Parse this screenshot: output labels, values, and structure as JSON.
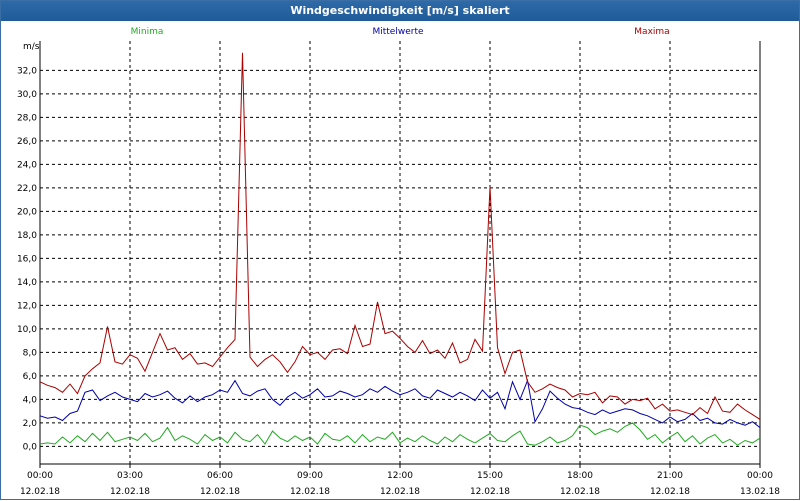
{
  "window": {
    "title": "Windgeschwindigkeit [m/s] skaliert"
  },
  "chart_data": {
    "type": "line",
    "title": "Windgeschwindigkeit [m/s] skaliert",
    "ylabel": "m/s",
    "ylim": [
      -1.5,
      34.5
    ],
    "yticks": [
      0,
      2,
      4,
      6,
      8,
      10,
      12,
      14,
      16,
      18,
      20,
      22,
      24,
      26,
      28,
      30,
      32
    ],
    "ytick_labels": [
      "0,0",
      "2,0",
      "4,0",
      "6,0",
      "8,0",
      "10,0",
      "12,0",
      "14,0",
      "16,0",
      "18,0",
      "20,0",
      "22,0",
      "24,0",
      "26,0",
      "28,0",
      "30,0",
      "32,0"
    ],
    "xlim_hours": [
      0,
      24
    ],
    "xticks": [
      {
        "time": "00:00",
        "date": "12.02.18"
      },
      {
        "time": "03:00",
        "date": "12.02.18"
      },
      {
        "time": "06:00",
        "date": "12.02.18"
      },
      {
        "time": "09:00",
        "date": "12.02.18"
      },
      {
        "time": "12:00",
        "date": "12.02.18"
      },
      {
        "time": "15:00",
        "date": "12.02.18"
      },
      {
        "time": "18:00",
        "date": "12.02.18"
      },
      {
        "time": "21:00",
        "date": "12.02.18"
      },
      {
        "time": "00:00",
        "date": "13.02.18"
      }
    ],
    "grid": true,
    "legend_position": "top",
    "x_hours": [
      0,
      0.25,
      0.5,
      0.75,
      1,
      1.25,
      1.5,
      1.75,
      2,
      2.25,
      2.5,
      2.75,
      3,
      3.25,
      3.5,
      3.75,
      4,
      4.25,
      4.5,
      4.75,
      5,
      5.25,
      5.5,
      5.75,
      6,
      6.25,
      6.5,
      6.75,
      7,
      7.25,
      7.5,
      7.75,
      8,
      8.25,
      8.5,
      8.75,
      9,
      9.25,
      9.5,
      9.75,
      10,
      10.25,
      10.5,
      10.75,
      11,
      11.25,
      11.5,
      11.75,
      12,
      12.25,
      12.5,
      12.75,
      13,
      13.25,
      13.5,
      13.75,
      14,
      14.25,
      14.5,
      14.75,
      15,
      15.25,
      15.5,
      15.75,
      16,
      16.25,
      16.5,
      16.75,
      17,
      17.25,
      17.5,
      17.75,
      18,
      18.25,
      18.5,
      18.75,
      19,
      19.25,
      19.5,
      19.75,
      20,
      20.25,
      20.5,
      20.75,
      21,
      21.25,
      21.5,
      21.75,
      22,
      22.25,
      22.5,
      22.75,
      23,
      23.25,
      23.5,
      23.75,
      24
    ],
    "series": [
      {
        "name": "Minima",
        "color": "#22aa22",
        "values": [
          0.2,
          0.3,
          0.2,
          0.8,
          0.3,
          0.9,
          0.4,
          1.1,
          0.5,
          1.2,
          0.4,
          0.6,
          0.8,
          0.5,
          1.1,
          0.4,
          0.7,
          1.6,
          0.5,
          0.9,
          0.6,
          0.2,
          1.0,
          0.5,
          0.8,
          0.3,
          1.2,
          0.6,
          0.4,
          1.0,
          0.2,
          1.3,
          0.7,
          0.4,
          0.9,
          0.5,
          0.8,
          0.2,
          1.1,
          0.6,
          0.5,
          0.9,
          0.3,
          1.0,
          0.4,
          0.8,
          0.6,
          1.2,
          0.3,
          0.7,
          0.4,
          0.9,
          0.5,
          0.2,
          0.8,
          0.4,
          1.0,
          0.6,
          0.3,
          0.7,
          1.1,
          0.5,
          0.4,
          0.9,
          1.3,
          0.2,
          0.1,
          0.4,
          0.8,
          0.3,
          0.5,
          0.9,
          1.8,
          1.6,
          1.0,
          1.3,
          1.5,
          1.2,
          1.7,
          2.0,
          1.4,
          0.6,
          1.0,
          0.3,
          0.8,
          1.2,
          0.4,
          0.9,
          0.2,
          0.7,
          1.0,
          0.3,
          0.6,
          0.1,
          0.5,
          0.3,
          0.7
        ]
      },
      {
        "name": "Mittelwerte",
        "color": "#0000aa",
        "values": [
          2.6,
          2.4,
          2.5,
          2.2,
          2.8,
          3.0,
          4.6,
          4.8,
          3.9,
          4.3,
          4.6,
          4.2,
          4.0,
          3.8,
          4.5,
          4.2,
          4.4,
          4.7,
          4.1,
          3.7,
          4.3,
          3.8,
          4.2,
          4.4,
          4.8,
          4.6,
          5.6,
          4.5,
          4.3,
          4.7,
          4.9,
          4.0,
          3.5,
          4.2,
          4.6,
          4.1,
          4.4,
          4.9,
          4.2,
          4.3,
          4.7,
          4.5,
          4.2,
          4.4,
          4.9,
          4.6,
          5.1,
          4.7,
          4.4,
          4.6,
          4.9,
          4.3,
          4.1,
          4.8,
          4.5,
          4.2,
          4.6,
          4.3,
          3.9,
          4.8,
          4.1,
          4.6,
          3.2,
          5.5,
          4.0,
          5.6,
          2.1,
          3.2,
          4.7,
          4.1,
          3.6,
          3.3,
          3.2,
          2.9,
          2.7,
          3.1,
          2.8,
          3.0,
          3.2,
          3.1,
          2.8,
          2.6,
          2.3,
          2.0,
          2.5,
          2.1,
          2.3,
          2.8,
          2.2,
          2.4,
          2.0,
          1.9,
          2.3,
          2.0,
          1.8,
          2.1,
          1.6
        ]
      },
      {
        "name": "Maxima",
        "color": "#aa0000",
        "values": [
          5.5,
          5.2,
          5.0,
          4.6,
          5.3,
          4.5,
          6.0,
          6.6,
          7.1,
          10.2,
          7.2,
          7.0,
          7.8,
          7.5,
          6.4,
          8.0,
          9.6,
          8.2,
          8.4,
          7.4,
          7.9,
          7.0,
          7.1,
          6.8,
          7.6,
          8.4,
          9.1,
          33.5,
          7.6,
          6.8,
          7.4,
          7.8,
          7.2,
          6.3,
          7.2,
          8.5,
          7.8,
          8.0,
          7.4,
          8.2,
          8.3,
          7.9,
          10.3,
          8.5,
          8.7,
          12.3,
          9.6,
          9.8,
          9.2,
          8.5,
          8.0,
          9.0,
          7.9,
          8.2,
          7.5,
          8.8,
          7.1,
          7.4,
          9.1,
          8.1,
          22.1,
          8.4,
          6.2,
          8.0,
          8.2,
          5.5,
          4.6,
          4.9,
          5.3,
          5.0,
          4.8,
          4.2,
          4.5,
          4.4,
          4.6,
          3.7,
          4.3,
          4.2,
          3.6,
          4.0,
          3.9,
          4.1,
          3.2,
          3.6,
          3.0,
          3.1,
          2.9,
          2.7,
          3.3,
          2.8,
          4.2,
          3.0,
          2.9,
          3.6,
          3.1,
          2.7,
          2.3
        ]
      }
    ]
  }
}
